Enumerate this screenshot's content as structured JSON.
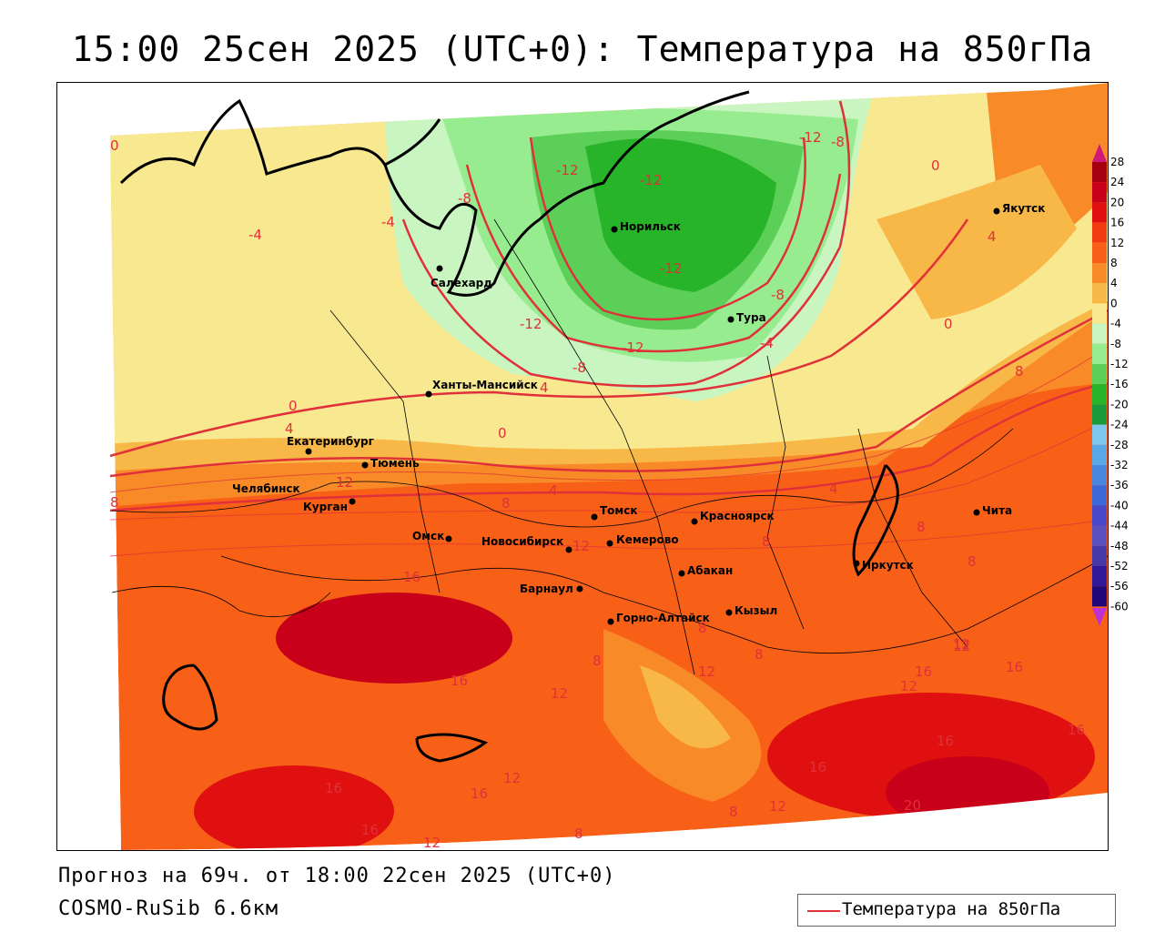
{
  "title": "15:00 25сен 2025 (UTC+0): Температура на 850гПа",
  "footer": {
    "forecast": "Прогноз на 69ч. от 18:00 22сен 2025 (UTC+0)",
    "model": "COSMO-RuSib 6.6км"
  },
  "legend": {
    "label": "Температура на 850гПа",
    "line_color": "#e0303a"
  },
  "colorbar": {
    "ticks": [
      "28",
      "24",
      "20",
      "16",
      "12",
      "8",
      "4",
      "0",
      "-4",
      "-8",
      "-12",
      "-16",
      "-20",
      "-24",
      "-28",
      "-32",
      "-36",
      "-40",
      "-44",
      "-48",
      "-52",
      "-56",
      "-60"
    ],
    "colors": [
      "#a50010",
      "#c8001a",
      "#e01010",
      "#f03a10",
      "#f86018",
      "#f88a28",
      "#f8b848",
      "#f8e890",
      "#c8f5c0",
      "#98ec90",
      "#5ccf58",
      "#28b428",
      "#1a9a3a",
      "#7ec8f0",
      "#5aa8e8",
      "#4a88e0",
      "#3c68d8",
      "#4848c8",
      "#5a50c0",
      "#4838a8",
      "#301898",
      "#200878"
    ],
    "top_arrow_color": "#d01a7a",
    "bottom_arrow_color": "#c030d0"
  },
  "cities": [
    {
      "name": "Салехард"
    },
    {
      "name": "Норильск"
    },
    {
      "name": "Тура"
    },
    {
      "name": "Якутск"
    },
    {
      "name": "Ханты-Мансийск"
    },
    {
      "name": "Екатеринбург"
    },
    {
      "name": "Тюмень"
    },
    {
      "name": "Челябинск"
    },
    {
      "name": "Курган"
    },
    {
      "name": "Омск"
    },
    {
      "name": "Новосибирск"
    },
    {
      "name": "Томск"
    },
    {
      "name": "Кемерово"
    },
    {
      "name": "Красноярск"
    },
    {
      "name": "Абакан"
    },
    {
      "name": "Иркутск"
    },
    {
      "name": "Чита"
    },
    {
      "name": "Барнаул"
    },
    {
      "name": "Горно-Алтайск"
    },
    {
      "name": "Кызыл"
    }
  ],
  "isotherm_labels": [
    "0",
    "-4",
    "-8",
    "-12",
    "-12",
    "-12",
    "-8",
    "-12",
    "-12",
    "-12",
    "-8",
    "-4",
    "-4",
    "0",
    "4",
    "4",
    "-8",
    "0",
    "4",
    "8",
    "0",
    "0",
    "4",
    "4",
    "8",
    "8",
    "12",
    "8",
    "12",
    "16",
    "16",
    "12",
    "8",
    "12",
    "8",
    "8",
    "12",
    "8",
    "8",
    "16",
    "12",
    "16",
    "16",
    "16",
    "12",
    "16",
    "16",
    "12",
    "8",
    "12",
    "16",
    "20",
    "8",
    "12",
    "16"
  ]
}
